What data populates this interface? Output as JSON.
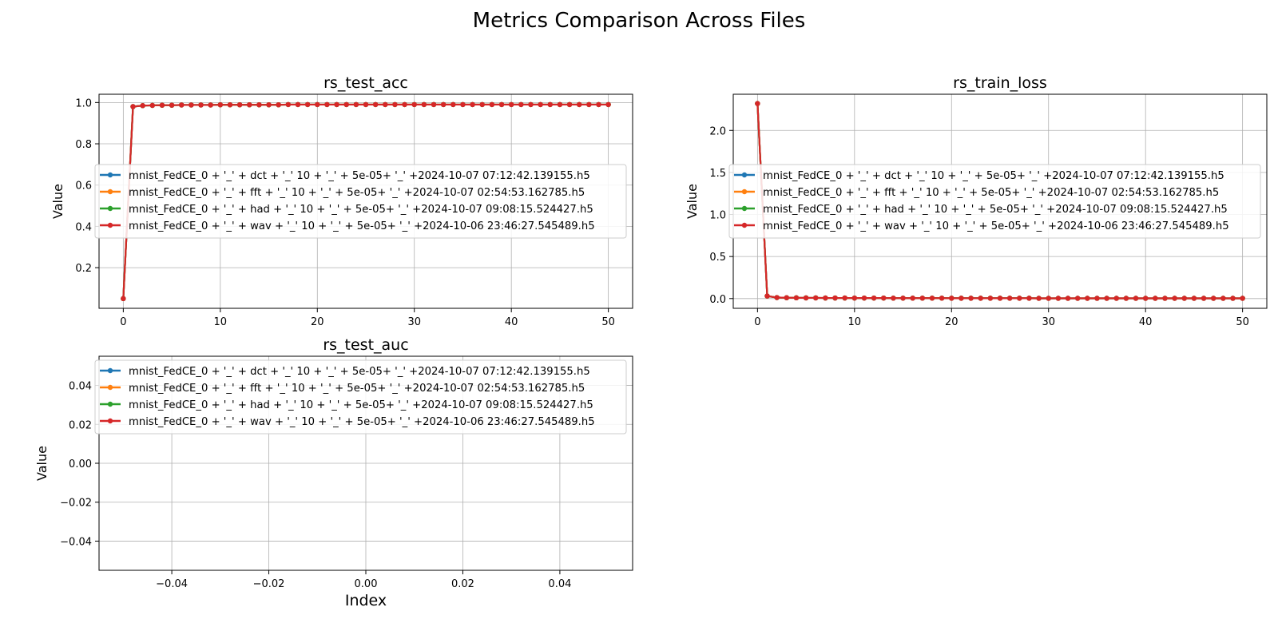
{
  "figure": {
    "suptitle": "Metrics Comparison Across Files"
  },
  "legend_labels": [
    "mnist_FedCE_0 + '_' + dct + '_' 10 + '_' + 5e-05+ '_' +2024-10-07 07:12:42.139155.h5",
    "mnist_FedCE_0 + '_' + fft + '_' 10 + '_' + 5e-05+ '_' +2024-10-07 02:54:53.162785.h5",
    "mnist_FedCE_0 + '_' + had + '_' 10 + '_' + 5e-05+ '_' +2024-10-07 09:08:15.524427.h5",
    "mnist_FedCE_0 + '_' + wav + '_' 10 + '_' + 5e-05+ '_' +2024-10-06 23:46:27.545489.h5"
  ],
  "series_colors": [
    "#1f77b4",
    "#ff7f0e",
    "#2ca02c",
    "#d62728"
  ],
  "chart_data": [
    {
      "type": "line",
      "title": "rs_test_acc",
      "xlabel": "",
      "ylabel": "Value",
      "xlim": [
        -2.5,
        52.5
      ],
      "ylim": [
        0.003,
        1.04
      ],
      "xticks": [
        0,
        10,
        20,
        30,
        40,
        50
      ],
      "yticks": [
        0.2,
        0.4,
        0.6,
        0.8,
        1.0
      ],
      "ytick_labels": [
        "0.2",
        "0.4",
        "0.6",
        "0.8",
        "1.0"
      ],
      "grid": true,
      "legend": "center-left",
      "x": [
        0,
        1,
        2,
        3,
        4,
        5,
        6,
        7,
        8,
        9,
        10,
        11,
        12,
        13,
        14,
        15,
        16,
        17,
        18,
        19,
        20,
        21,
        22,
        23,
        24,
        25,
        26,
        27,
        28,
        29,
        30,
        31,
        32,
        33,
        34,
        35,
        36,
        37,
        38,
        39,
        40,
        41,
        42,
        43,
        44,
        45,
        46,
        47,
        48,
        49,
        50
      ],
      "y": [
        0.05,
        0.98,
        0.985,
        0.986,
        0.987,
        0.987,
        0.988,
        0.988,
        0.988,
        0.988,
        0.989,
        0.989,
        0.989,
        0.989,
        0.989,
        0.989,
        0.989,
        0.99,
        0.99,
        0.99,
        0.99,
        0.99,
        0.99,
        0.99,
        0.99,
        0.99,
        0.99,
        0.99,
        0.99,
        0.99,
        0.99,
        0.99,
        0.99,
        0.99,
        0.99,
        0.99,
        0.99,
        0.99,
        0.99,
        0.99,
        0.99,
        0.99,
        0.99,
        0.99,
        0.99,
        0.99,
        0.99,
        0.99,
        0.99,
        0.99,
        0.99
      ]
    },
    {
      "type": "line",
      "title": "rs_train_loss",
      "xlabel": "",
      "ylabel": "Value",
      "xlim": [
        -2.5,
        52.5
      ],
      "ylim": [
        -0.116,
        2.43
      ],
      "xticks": [
        0,
        10,
        20,
        30,
        40,
        50
      ],
      "yticks": [
        0.0,
        0.5,
        1.0,
        1.5,
        2.0
      ],
      "ytick_labels": [
        "0.0",
        "0.5",
        "1.0",
        "1.5",
        "2.0"
      ],
      "grid": true,
      "legend": "center-left",
      "x": [
        0,
        1,
        2,
        3,
        4,
        5,
        6,
        7,
        8,
        9,
        10,
        11,
        12,
        13,
        14,
        15,
        16,
        17,
        18,
        19,
        20,
        21,
        22,
        23,
        24,
        25,
        26,
        27,
        28,
        29,
        30,
        31,
        32,
        33,
        34,
        35,
        36,
        37,
        38,
        39,
        40,
        41,
        42,
        43,
        44,
        45,
        46,
        47,
        48,
        49,
        50
      ],
      "y": [
        2.32,
        0.03,
        0.012,
        0.01,
        0.009,
        0.008,
        0.008,
        0.007,
        0.007,
        0.007,
        0.006,
        0.006,
        0.006,
        0.006,
        0.005,
        0.005,
        0.005,
        0.005,
        0.005,
        0.005,
        0.004,
        0.004,
        0.004,
        0.004,
        0.004,
        0.004,
        0.004,
        0.004,
        0.004,
        0.003,
        0.003,
        0.003,
        0.003,
        0.003,
        0.003,
        0.003,
        0.003,
        0.003,
        0.003,
        0.003,
        0.003,
        0.003,
        0.003,
        0.003,
        0.003,
        0.003,
        0.003,
        0.003,
        0.003,
        0.003,
        0.003
      ]
    },
    {
      "type": "line",
      "title": "rs_test_auc",
      "xlabel": "Index",
      "ylabel": "Value",
      "xlim": [
        -0.055,
        0.055
      ],
      "ylim": [
        -0.055,
        0.055
      ],
      "xticks": [
        -0.04,
        -0.02,
        0.0,
        0.02,
        0.04
      ],
      "xtick_labels": [
        "−0.04",
        "−0.02",
        "0.00",
        "0.02",
        "0.04"
      ],
      "yticks": [
        -0.04,
        -0.02,
        0.0,
        0.02,
        0.04
      ],
      "ytick_labels": [
        "−0.04",
        "−0.02",
        "0.00",
        "0.02",
        "0.04"
      ],
      "grid": true,
      "legend": "upper-left",
      "x": [],
      "y": []
    }
  ]
}
